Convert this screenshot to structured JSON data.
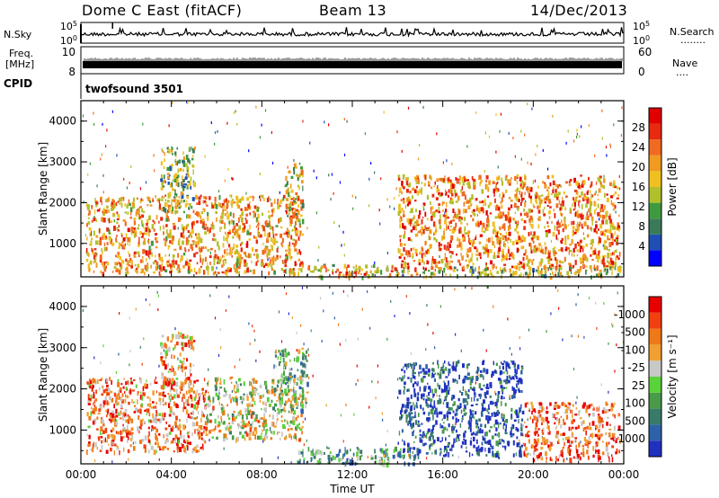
{
  "header": {
    "site": "Dome C East (fitACF)",
    "beam": "Beam 13",
    "date": "14/Dec/2013"
  },
  "panels": {
    "nsky_label": "N.Sky",
    "nsearch_label": "N.Search",
    "nsearch_dots": "........",
    "freq_label_1": "Freq.",
    "freq_label_2": "[MHz]",
    "nave_label": "Nave",
    "nave_dots": "....",
    "cpid_label": "CPID",
    "cpid_value": "twofsound 3501",
    "noise_ticks_left": [
      "10^5",
      "10^0"
    ],
    "noise_ticks_right": [
      "10^5",
      "10^0"
    ],
    "freq_ticks": [
      "10",
      "8"
    ],
    "nave_ticks": [
      "60",
      "0"
    ]
  },
  "chart_data": [
    {
      "type": "heatmap",
      "name": "Power",
      "ylabel": "Slant Range [km]",
      "xlabel": "Time UT",
      "xticks": [
        "00:00",
        "04:00",
        "08:00",
        "12:00",
        "16:00",
        "20:00",
        "00:00"
      ],
      "yticks": [
        1000,
        2000,
        3000,
        4000
      ],
      "ylim": [
        180,
        4500
      ],
      "xlim_hours": [
        0,
        24
      ],
      "colorbar": {
        "label": "Power [dB]",
        "ticks": [
          "4",
          "8",
          "12",
          "16",
          "20",
          "24",
          "28"
        ],
        "colors": [
          "#0000ff",
          "#1f4fb4",
          "#3a7a5a",
          "#3f9a3f",
          "#b0c02a",
          "#f0c020",
          "#f09a20",
          "#f06a20",
          "#e82a10",
          "#e00000"
        ]
      },
      "regions": [
        {
          "t0": 0.2,
          "t1": 9.8,
          "r0": 300,
          "r1": 2200,
          "level": 0.65
        },
        {
          "t0": 3.5,
          "t1": 5.0,
          "r0": 1800,
          "r1": 3400,
          "level": 0.4
        },
        {
          "t0": 9.0,
          "t1": 9.8,
          "r0": 1600,
          "r1": 3000,
          "level": 0.5
        },
        {
          "t0": 10.0,
          "t1": 14.0,
          "r0": 200,
          "r1": 500,
          "level": 0.55
        },
        {
          "t0": 11.0,
          "t1": 12.5,
          "r0": 200,
          "r1": 350,
          "level": 0.95
        },
        {
          "t0": 14.0,
          "t1": 23.8,
          "r0": 400,
          "r1": 2700,
          "level": 0.7
        },
        {
          "t0": 14.0,
          "t1": 23.8,
          "r0": 200,
          "r1": 450,
          "level": 0.45
        }
      ]
    },
    {
      "type": "heatmap",
      "name": "Velocity",
      "ylabel": "Slant Range [km]",
      "xlabel": "Time UT",
      "xticks": [
        "00:00",
        "04:00",
        "08:00",
        "12:00",
        "16:00",
        "20:00",
        "00:00"
      ],
      "yticks": [
        1000,
        2000,
        3000,
        4000
      ],
      "ylim": [
        180,
        4500
      ],
      "xlim_hours": [
        0,
        24
      ],
      "colorbar": {
        "label": "Velocity [m s⁻¹]",
        "ticks": [
          "1000",
          "500",
          "100",
          "25",
          "-25",
          "-100",
          "-500",
          "-1000"
        ],
        "colors": [
          "#2030c0",
          "#2e62a8",
          "#3a7a6a",
          "#4a9a4a",
          "#5ad23a",
          "#c8c8c8",
          "#f0a030",
          "#f07818",
          "#f04010",
          "#e80000"
        ]
      },
      "regions": [
        {
          "t0": 0.2,
          "t1": 5.5,
          "r0": 500,
          "r1": 2300,
          "level": 0.75
        },
        {
          "t0": 5.5,
          "t1": 9.8,
          "r0": 800,
          "r1": 2300,
          "level": 0.55
        },
        {
          "t0": 3.5,
          "t1": 5.0,
          "r0": 1800,
          "r1": 3400,
          "level": 0.7
        },
        {
          "t0": 8.5,
          "t1": 10.0,
          "r0": 1500,
          "r1": 3000,
          "level": 0.4
        },
        {
          "t0": 9.5,
          "t1": 15.0,
          "r0": 200,
          "r1": 600,
          "level": 0.35
        },
        {
          "t0": 14.0,
          "t1": 19.5,
          "r0": 400,
          "r1": 2700,
          "level": 0.1
        },
        {
          "t0": 19.5,
          "t1": 23.8,
          "r0": 300,
          "r1": 1700,
          "level": 0.8
        }
      ]
    }
  ],
  "colors": {
    "background": "#ffffff",
    "axis": "#000000"
  }
}
